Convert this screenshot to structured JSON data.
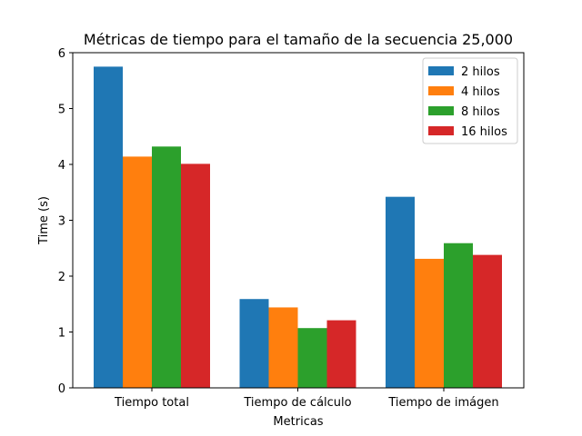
{
  "chart_data": {
    "type": "bar",
    "title": "Métricas de tiempo para el tamaño de la secuencia 25,000",
    "xlabel": "Metricas",
    "ylabel": "Time (s)",
    "categories": [
      "Tiempo total",
      "Tiempo de cálculo",
      "Tiempo de imágen"
    ],
    "ylim": [
      0,
      6
    ],
    "yticks": [
      0,
      1,
      2,
      3,
      4,
      5,
      6
    ],
    "grid": false,
    "legend_position": "top-right",
    "series": [
      {
        "name": "2 hilos",
        "color": "#1f77b4",
        "values": [
          5.75,
          1.59,
          3.42
        ]
      },
      {
        "name": "4 hilos",
        "color": "#ff7f0e",
        "values": [
          4.14,
          1.44,
          2.31
        ]
      },
      {
        "name": "8 hilos",
        "color": "#2ca02c",
        "values": [
          4.32,
          1.07,
          2.59
        ]
      },
      {
        "name": "16 hilos",
        "color": "#d62728",
        "values": [
          4.01,
          1.21,
          2.38
        ]
      }
    ]
  }
}
